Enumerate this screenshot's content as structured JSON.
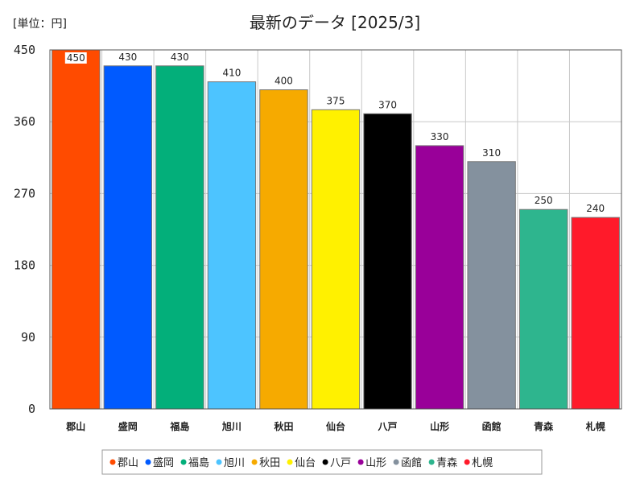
{
  "chart_data": {
    "type": "bar",
    "title": "最新のデータ [2025/3]",
    "unit_label": "[単位：円]",
    "categories": [
      "郡山",
      "盛岡",
      "福島",
      "旭川",
      "秋田",
      "仙台",
      "八戸",
      "山形",
      "函館",
      "青森",
      "札幌"
    ],
    "values": [
      450,
      430,
      430,
      410,
      400,
      375,
      370,
      330,
      310,
      250,
      240
    ],
    "colors": [
      "#ff4b00",
      "#005aff",
      "#03af7a",
      "#4dc4ff",
      "#f6aa00",
      "#fff100",
      "#000000",
      "#990099",
      "#84919e",
      "#2eb58e",
      "#ff1a2a"
    ],
    "ylim": [
      0,
      450
    ],
    "yticks": [
      0,
      90,
      180,
      270,
      360,
      450
    ],
    "xlabel": "",
    "ylabel": "",
    "grid": true,
    "legend_position": "bottom"
  }
}
